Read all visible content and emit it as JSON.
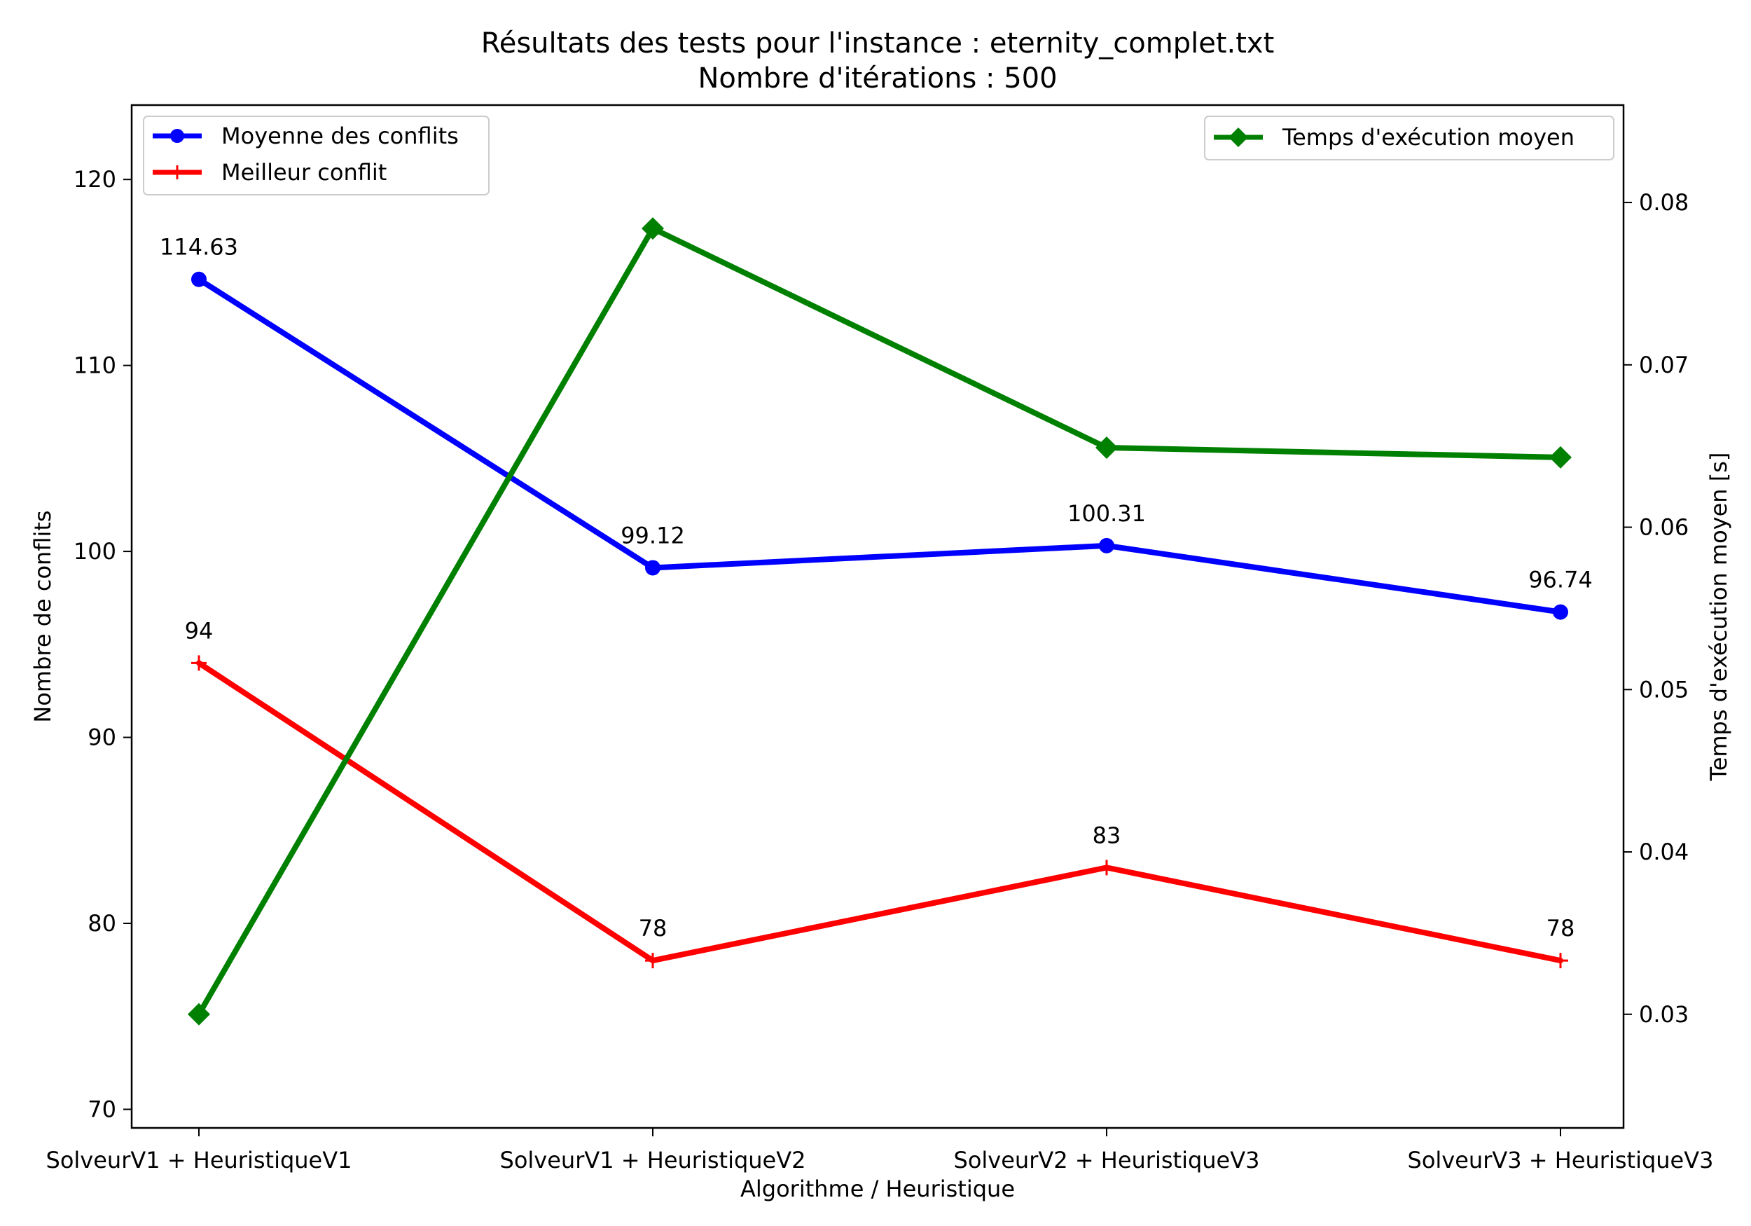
{
  "chart_data": {
    "type": "line",
    "title": "Résultats des tests pour l'instance : eternity_complet.txt",
    "subtitle": "Nombre d'itérations : 500",
    "xlabel": "Algorithme / Heuristique",
    "ylabel_left": "Nombre de conflits",
    "ylabel_right": "Temps d'exécution moyen [s]",
    "categories": [
      "SolveurV1 + HeuristiqueV1",
      "SolveurV1 + HeuristiqueV2",
      "SolveurV2 + HeuristiqueV3",
      "SolveurV3 + HeuristiqueV3"
    ],
    "ylim_left": [
      69,
      124
    ],
    "ylim_right": [
      0.023,
      0.086
    ],
    "yticks_left": [
      "70",
      "80",
      "90",
      "100",
      "110",
      "120"
    ],
    "yticks_right": [
      "0.03",
      "0.04",
      "0.05",
      "0.06",
      "0.07",
      "0.08"
    ],
    "grid": false,
    "series": [
      {
        "name": "Moyenne des conflits",
        "axis": "left",
        "color": "#0000ff",
        "marker": "circle",
        "values": [
          114.63,
          99.12,
          100.31,
          96.74
        ],
        "labels": [
          "114.63",
          "99.12",
          "100.31",
          "96.74"
        ]
      },
      {
        "name": "Meilleur conflit",
        "axis": "left",
        "color": "#ff0000",
        "marker": "plus",
        "values": [
          94,
          78,
          83,
          78
        ],
        "labels": [
          "94",
          "78",
          "83",
          "78"
        ]
      },
      {
        "name": "Temps d'exécution moyen",
        "axis": "right",
        "color": "#008000",
        "marker": "diamond",
        "values": [
          0.03,
          0.0784,
          0.0649,
          0.0643
        ],
        "labels": []
      }
    ],
    "legend_left": {
      "placement": "upper-left",
      "entries": [
        "Moyenne des conflits",
        "Meilleur conflit"
      ]
    },
    "legend_right": {
      "placement": "upper-right",
      "entries": [
        "Temps d'exécution moyen"
      ]
    }
  }
}
